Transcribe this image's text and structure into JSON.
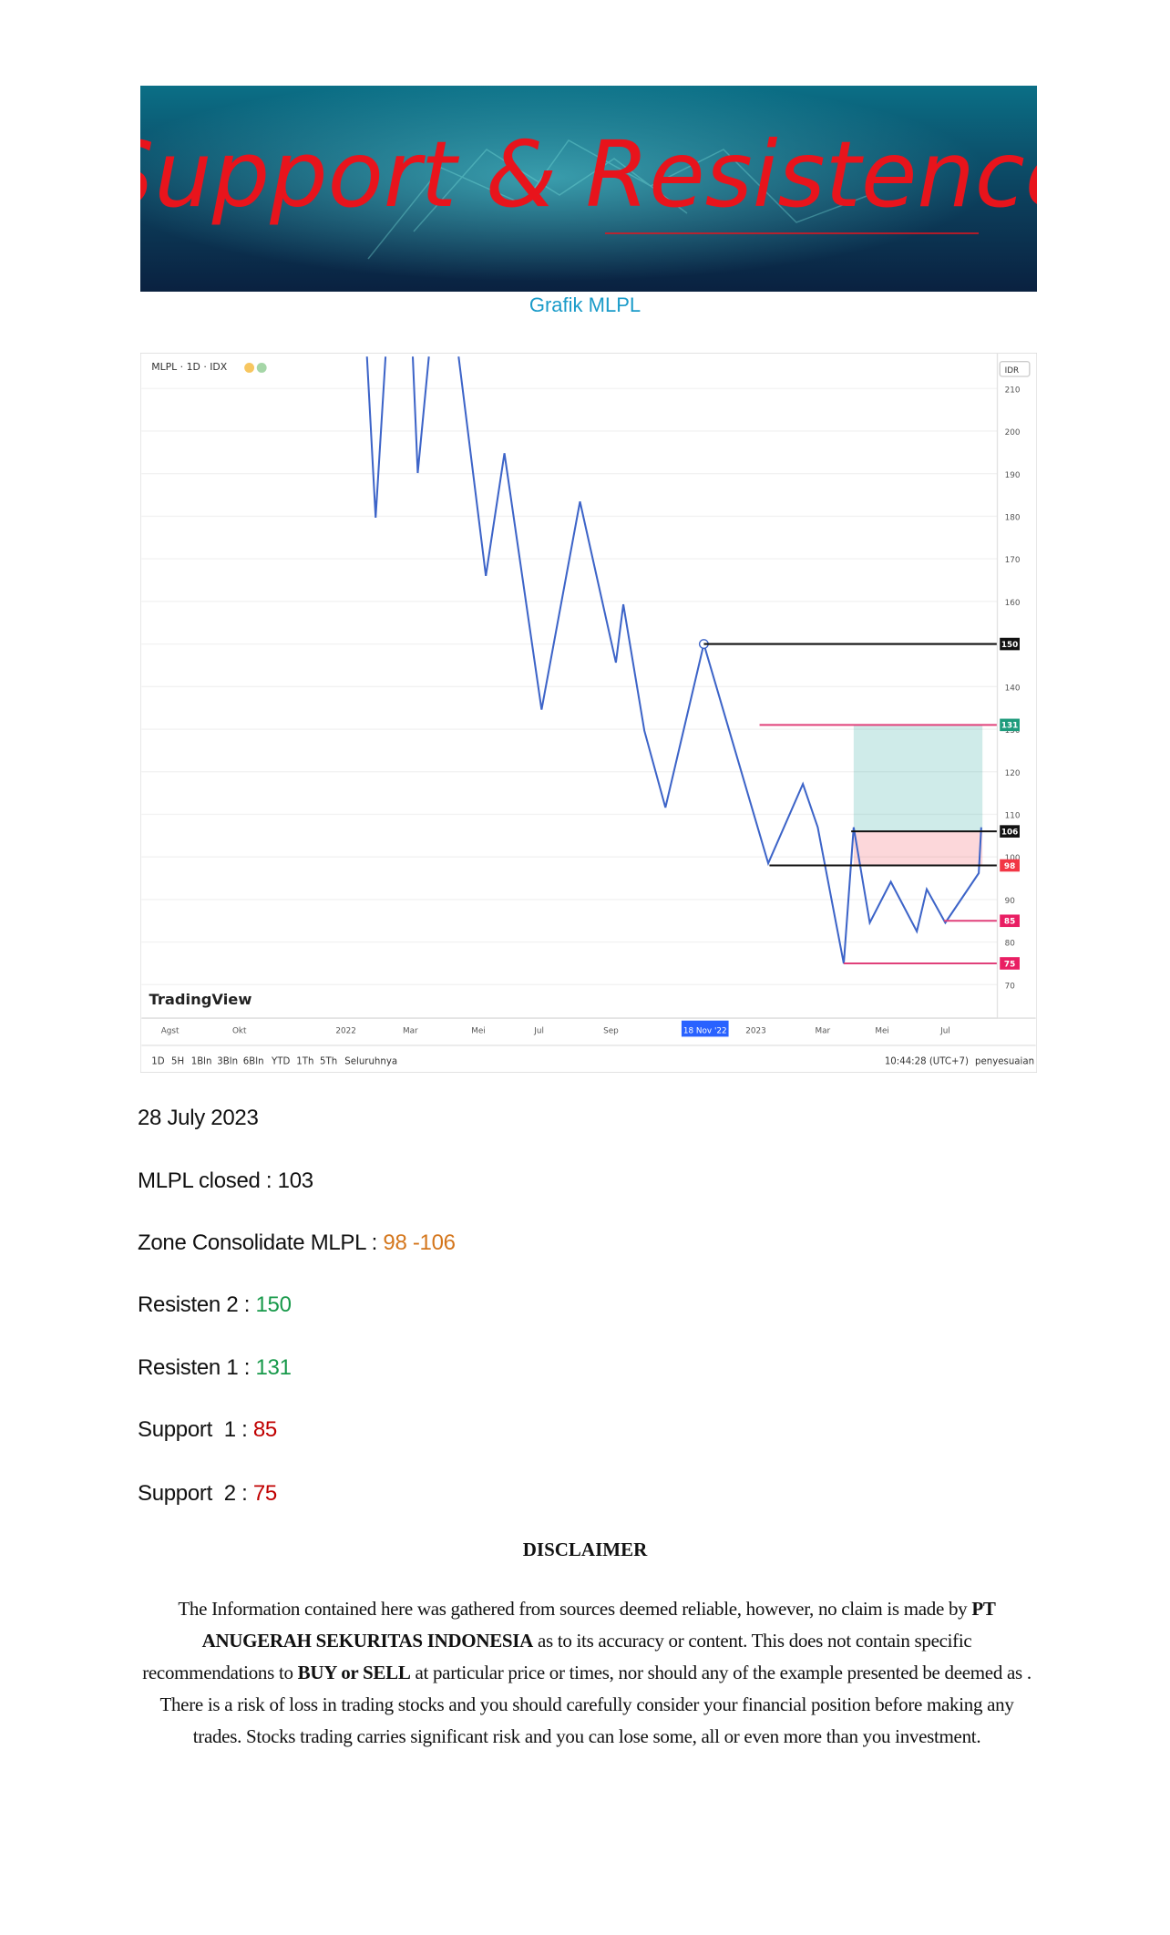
{
  "header": {
    "banner_title": "Support & Resistence",
    "chart_caption": "Grafik MLPL"
  },
  "chart": {
    "symbol": "MLPL · 1D · IDX",
    "currency": "IDR",
    "watermark": "TradingView",
    "yticks": [
      70,
      80,
      90,
      100,
      110,
      120,
      130,
      140,
      150,
      160,
      170,
      180,
      190,
      200,
      210
    ],
    "levels": [
      {
        "value": 150,
        "line_color": "#111111",
        "label_color": "#111111"
      },
      {
        "value": 131,
        "line_color": "#e0407a",
        "label_color": "#1e9b7c"
      },
      {
        "value": 106,
        "line_color": "#111111",
        "label_color": "#111111"
      },
      {
        "value": 98,
        "line_color": "#111111",
        "label_color": "#f23645"
      },
      {
        "value": 85,
        "line_color": "#e0407a",
        "label_color": "#e91e63"
      },
      {
        "value": 75,
        "line_color": "#e0407a",
        "label_color": "#e91e63"
      }
    ],
    "target_zone": [
      106,
      131
    ],
    "stop_zone": [
      98,
      106
    ],
    "x_labels": [
      "Agst",
      "Okt",
      "2022",
      "Mar",
      "Mei",
      "Jul",
      "Sep",
      "18 Nov '22",
      "2023",
      "Mar",
      "Mei",
      "Jul"
    ],
    "toolbar": [
      "1D",
      "5H",
      "1Bln",
      "3Bln",
      "6Bln",
      "YTD",
      "1Th",
      "5Th",
      "Seluruhnya"
    ],
    "time": "10:44:28 (UTC+7)",
    "adjust": "penyesuaian"
  },
  "report": {
    "date": "28 July 2023",
    "lines": [
      {
        "label": "MLPL closed : ",
        "value": "103",
        "color": "#111111"
      },
      {
        "label": "Zone Consolidate MLPL : ",
        "value": "98 -106",
        "color": "#d4761c"
      },
      {
        "label": "Resisten 2 : ",
        "value": "150",
        "color": "#17994a"
      },
      {
        "label": "Resisten 1 : ",
        "value": "131",
        "color": "#17994a"
      },
      {
        "label": "Support  1 : ",
        "value": "85",
        "color": "#c00000"
      },
      {
        "label": "Support  2 : ",
        "value": "75",
        "color": "#c00000"
      }
    ]
  },
  "disclaimer": {
    "title": "DISCLAIMER",
    "body": [
      {
        "text": "The Information contained here was gathered from sources deemed reliable, however, no claim is made by ",
        "bold": false
      },
      {
        "text": "PT ANUGERAH SEKURITAS INDONESIA",
        "bold": true
      },
      {
        "text": " as to its accuracy or content. This does not contain specific recommendations to ",
        "bold": false
      },
      {
        "text": "BUY or SELL",
        "bold": true
      },
      {
        "text": " at particular price or times, nor should any of the example presented be deemed as . There is a risk of loss in trading stocks and you should carefully consider your financial position before making any trades. Stocks trading carries significant risk and you can lose some, all or even more than you investment.",
        "bold": false
      }
    ]
  }
}
